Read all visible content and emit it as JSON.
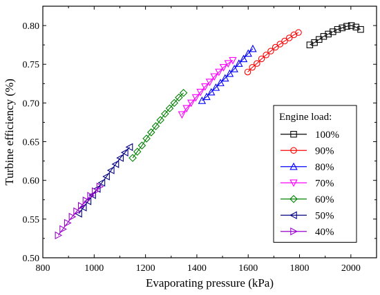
{
  "chart_data": {
    "type": "scatter",
    "xlabel": "Evaporating pressure (kPa)",
    "ylabel": "Turbine efficiency (%)",
    "xlim": [
      800,
      2100
    ],
    "ylim": [
      0.5,
      0.825
    ],
    "xticks": [
      800,
      1000,
      1200,
      1400,
      1600,
      1800,
      2000
    ],
    "yticks": [
      0.5,
      0.55,
      0.6,
      0.65,
      0.7,
      0.75,
      0.8
    ],
    "xtick_labels": [
      "800",
      "1000",
      "1200",
      "1400",
      "1600",
      "1800",
      "2000"
    ],
    "ytick_labels": [
      "0.50",
      "0.55",
      "0.60",
      "0.65",
      "0.70",
      "0.75",
      "0.80"
    ],
    "grid": false,
    "legend_title": "Engine load:",
    "legend_position": "lower-right",
    "series": [
      {
        "name": "100%",
        "color": "#000000",
        "marker": "square",
        "x": [
          1840,
          1858,
          1876,
          1894,
          1912,
          1930,
          1948,
          1966,
          1984,
          2002,
          2020,
          2038
        ],
        "y": [
          0.775,
          0.778,
          0.782,
          0.786,
          0.789,
          0.792,
          0.795,
          0.797,
          0.799,
          0.8,
          0.798,
          0.795
        ]
      },
      {
        "name": "90%",
        "color": "#ff0000",
        "marker": "circle",
        "x": [
          1598,
          1616,
          1634,
          1652,
          1670,
          1688,
          1706,
          1724,
          1742,
          1760,
          1778,
          1796
        ],
        "y": [
          0.74,
          0.746,
          0.751,
          0.757,
          0.762,
          0.767,
          0.772,
          0.776,
          0.78,
          0.784,
          0.788,
          0.791
        ]
      },
      {
        "name": "80%",
        "color": "#0000ff",
        "marker": "triangle-up",
        "x": [
          1420,
          1438,
          1456,
          1474,
          1492,
          1510,
          1528,
          1546,
          1564,
          1582,
          1600,
          1618
        ],
        "y": [
          0.703,
          0.708,
          0.714,
          0.72,
          0.726,
          0.732,
          0.738,
          0.744,
          0.751,
          0.757,
          0.764,
          0.77
        ]
      },
      {
        "name": "70%",
        "color": "#ff00ff",
        "marker": "triangle-down",
        "x": [
          1342,
          1360,
          1378,
          1396,
          1414,
          1432,
          1450,
          1468,
          1486,
          1504,
          1522,
          1540
        ],
        "y": [
          0.685,
          0.693,
          0.7,
          0.707,
          0.714,
          0.721,
          0.727,
          0.734,
          0.74,
          0.746,
          0.751,
          0.755
        ]
      },
      {
        "name": "60%",
        "color": "#008000",
        "marker": "diamond",
        "x": [
          1150,
          1168,
          1186,
          1204,
          1222,
          1240,
          1258,
          1276,
          1294,
          1312,
          1330,
          1348
        ],
        "y": [
          0.629,
          0.637,
          0.645,
          0.654,
          0.662,
          0.67,
          0.678,
          0.686,
          0.693,
          0.7,
          0.707,
          0.713
        ]
      },
      {
        "name": "50%",
        "color": "#000080",
        "marker": "triangle-left",
        "x": [
          940,
          958,
          976,
          994,
          1012,
          1030,
          1048,
          1066,
          1084,
          1102,
          1120,
          1138
        ],
        "y": [
          0.557,
          0.565,
          0.573,
          0.581,
          0.589,
          0.597,
          0.605,
          0.613,
          0.621,
          0.629,
          0.636,
          0.643
        ]
      },
      {
        "name": "40%",
        "color": "#9900cc",
        "marker": "triangle-right",
        "x": [
          860,
          878,
          896,
          914,
          932,
          950,
          968,
          986,
          1004,
          1022
        ],
        "y": [
          0.529,
          0.537,
          0.545,
          0.553,
          0.56,
          0.567,
          0.574,
          0.58,
          0.586,
          0.592
        ]
      }
    ]
  }
}
